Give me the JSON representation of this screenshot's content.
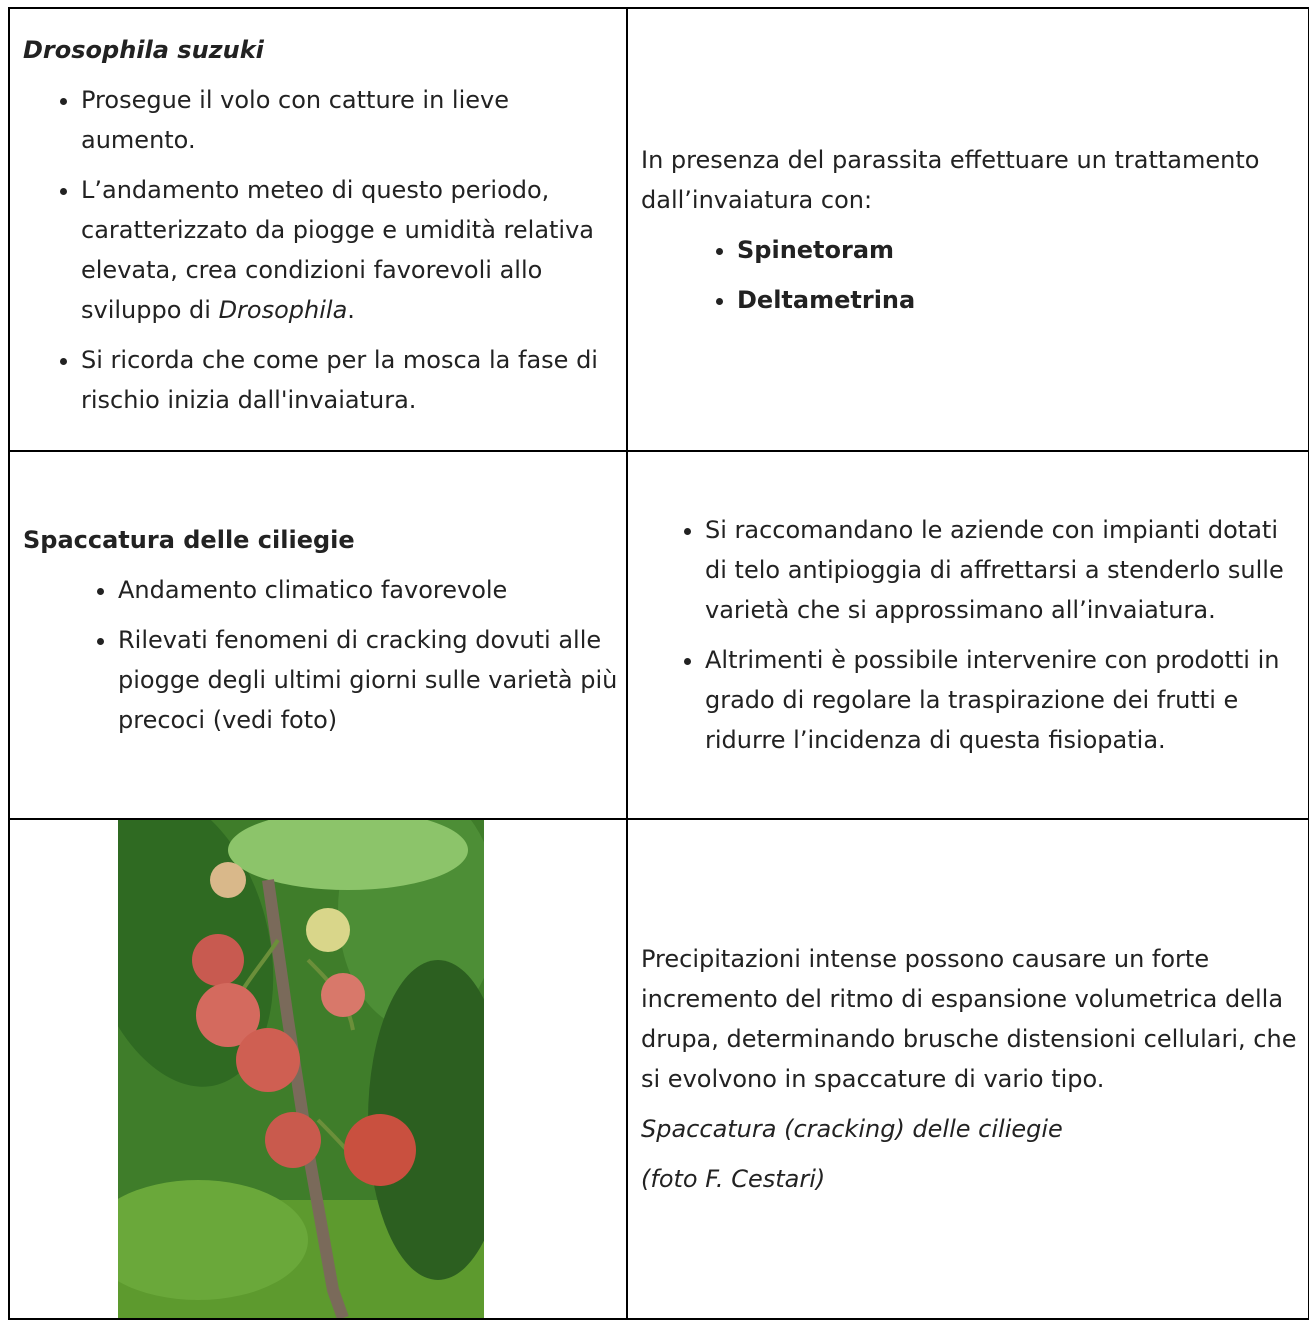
{
  "rows": [
    {
      "left": {
        "title": "Drosophila suzuki",
        "items": [
          "Prosegue il volo con catture in lieve aumento.",
          [
            "L’andamento meteo di questo periodo, caratterizzato da piogge e umidità relativa elevata, crea condizioni favorevoli allo sviluppo di ",
            "Drosophila",
            "."
          ],
          "Si ricorda che come per la mosca la fase di rischio inizia dall'invaiatura."
        ]
      },
      "right": {
        "text": "In presenza del parassita effettuare un trattamento dall’invaiatura con:",
        "items": [
          "Spinetoram",
          "Deltametrina"
        ]
      }
    },
    {
      "left": {
        "title": "Spaccatura delle ciliegie",
        "items": [
          "Andamento climatico favorevole",
          "Rilevati fenomeni di cracking dovuti alle piogge degli ultimi giorni sulle varietà più precoci (vedi foto)"
        ]
      },
      "right": {
        "items": [
          "Si raccomandano le aziende con impianti dotati di telo antipioggia di affrettarsi a stenderlo sulle varietà che si approssimano all’invaiatura.",
          "Altrimenti è possibile intervenire con prodotti in grado di regolare la traspirazione dei frutti e ridurre l’incidenza di questa fisiopatia."
        ]
      }
    },
    {
      "right": {
        "text": "Precipitazioni intense possono causare un forte incremento del ritmo di espansione volumetrica della drupa, determinando brusche distensioni cellulari, che si evolvono in spaccature di vario tipo.",
        "caption": "Spaccatura (cracking) delle ciliegie",
        "credit": "(foto F. Cestari)"
      }
    }
  ]
}
